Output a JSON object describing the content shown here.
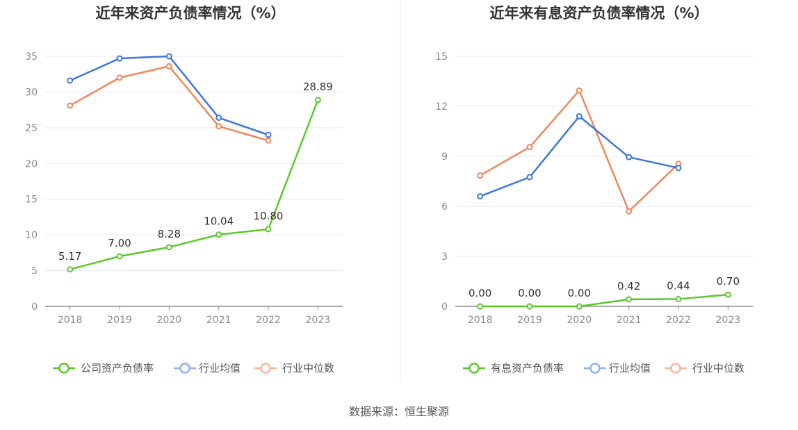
{
  "chart_data": [
    {
      "type": "line",
      "title": "近年来资产负债率情况（%）",
      "categories": [
        "2018",
        "2019",
        "2020",
        "2021",
        "2022",
        "2023"
      ],
      "ylim": [
        0,
        35
      ],
      "yticks": [
        0,
        5,
        10,
        15,
        20,
        25,
        30,
        35
      ],
      "grid": true,
      "legend_position": "bottom",
      "series": [
        {
          "name": "公司资产负债率",
          "color": "#5cc72d",
          "values": [
            5.17,
            7.0,
            8.28,
            10.04,
            10.8,
            28.89
          ],
          "labels": [
            "5.17",
            "7.00",
            "8.28",
            "10.04",
            "10.80",
            "28.89"
          ]
        },
        {
          "name": "行业均值",
          "color": "#3d77e0",
          "values": [
            31.6,
            34.7,
            35.0,
            26.4,
            24.0,
            null
          ]
        },
        {
          "name": "行业中位数",
          "color": "#f0875a",
          "values": [
            28.1,
            32.0,
            33.6,
            25.2,
            23.2,
            null
          ]
        }
      ]
    },
    {
      "type": "line",
      "title": "近年来有息资产负债率情况（%）",
      "categories": [
        "2018",
        "2019",
        "2020",
        "2021",
        "2022",
        "2023"
      ],
      "ylim": [
        0,
        15
      ],
      "yticks": [
        0,
        3,
        6,
        9,
        12,
        15
      ],
      "grid": true,
      "legend_position": "bottom",
      "series": [
        {
          "name": "有息资产负债率",
          "color": "#5cc72d",
          "values": [
            0.0,
            0.0,
            0.0,
            0.42,
            0.44,
            0.7
          ],
          "labels": [
            "0.00",
            "0.00",
            "0.00",
            "0.42",
            "0.44",
            "0.70"
          ]
        },
        {
          "name": "行业均值",
          "color": "#3d77e0",
          "values": [
            6.6,
            7.75,
            11.4,
            8.95,
            8.3,
            null
          ]
        },
        {
          "name": "行业中位数",
          "color": "#f0875a",
          "values": [
            7.85,
            9.55,
            12.95,
            5.7,
            8.55,
            null
          ]
        }
      ]
    }
  ],
  "source": "数据来源：恒生聚源"
}
